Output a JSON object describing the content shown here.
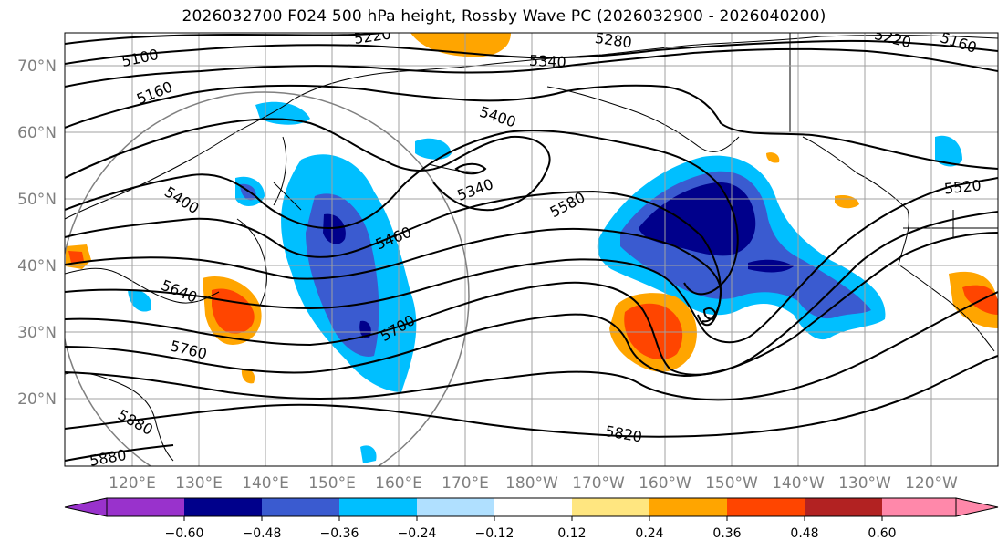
{
  "title": "2026032700 F024 500 hPa height, Rossby Wave PC (2026032900 - 2026040200)",
  "lat_labels": [
    "70°N",
    "60°N",
    "50°N",
    "40°N",
    "30°N",
    "20°N"
  ],
  "lon_labels": [
    "120°E",
    "130°E",
    "140°E",
    "150°E",
    "160°E",
    "170°E",
    "180°W",
    "170°W",
    "160°W",
    "150°W",
    "140°W",
    "130°W",
    "120°W"
  ],
  "colorbar": {
    "tick_labels": [
      "−0.60",
      "−0.48",
      "−0.36",
      "−0.24",
      "−0.12",
      "0.12",
      "0.24",
      "0.36",
      "0.48",
      "0.60"
    ],
    "colors": [
      "#9932cc",
      "#00008b",
      "#3a5bd0",
      "#00bfff",
      "#b0e0ff",
      "#ffffff",
      "#ffe680",
      "#ffa500",
      "#ff4500",
      "#b22222",
      "#ff88aa"
    ]
  },
  "contour_labels": [
    "5100",
    "5160",
    "5220",
    "5280",
    "5340",
    "5220",
    "5160",
    "5400",
    "5340",
    "5580",
    "5520",
    "5400",
    "5460",
    "5640",
    "5700",
    "5760",
    "5820",
    "5880",
    "5880"
  ]
}
